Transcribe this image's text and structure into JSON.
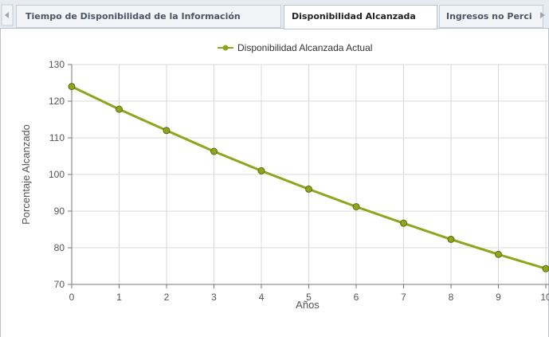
{
  "tabs": [
    "Tiempo de Disponibilidad de la Información",
    "Disponibilidad Alcanzada",
    "Ingresos no Perci"
  ],
  "active_tab": 1,
  "chart_data": {
    "type": "line",
    "x_label": "Años",
    "y_label": "Porcentaje Alcanzado",
    "x": [
      0,
      1,
      2,
      3,
      4,
      5,
      6,
      7,
      8,
      9,
      10
    ],
    "series": [
      {
        "name": "Disponibilidad Alcanzada Actual",
        "color": "#8fa51c",
        "values": [
          124,
          117.8,
          112,
          106.3,
          101,
          96,
          91.2,
          86.7,
          82.3,
          78.2,
          74.3
        ]
      }
    ],
    "xlim": [
      0,
      10
    ],
    "xticks": [
      0,
      1,
      2,
      3,
      4,
      5,
      6,
      7,
      8,
      9,
      10
    ],
    "ylim": [
      70,
      130
    ],
    "yticks": [
      70,
      80,
      90,
      100,
      110,
      120,
      130
    ],
    "grid": true,
    "legend": "top"
  }
}
